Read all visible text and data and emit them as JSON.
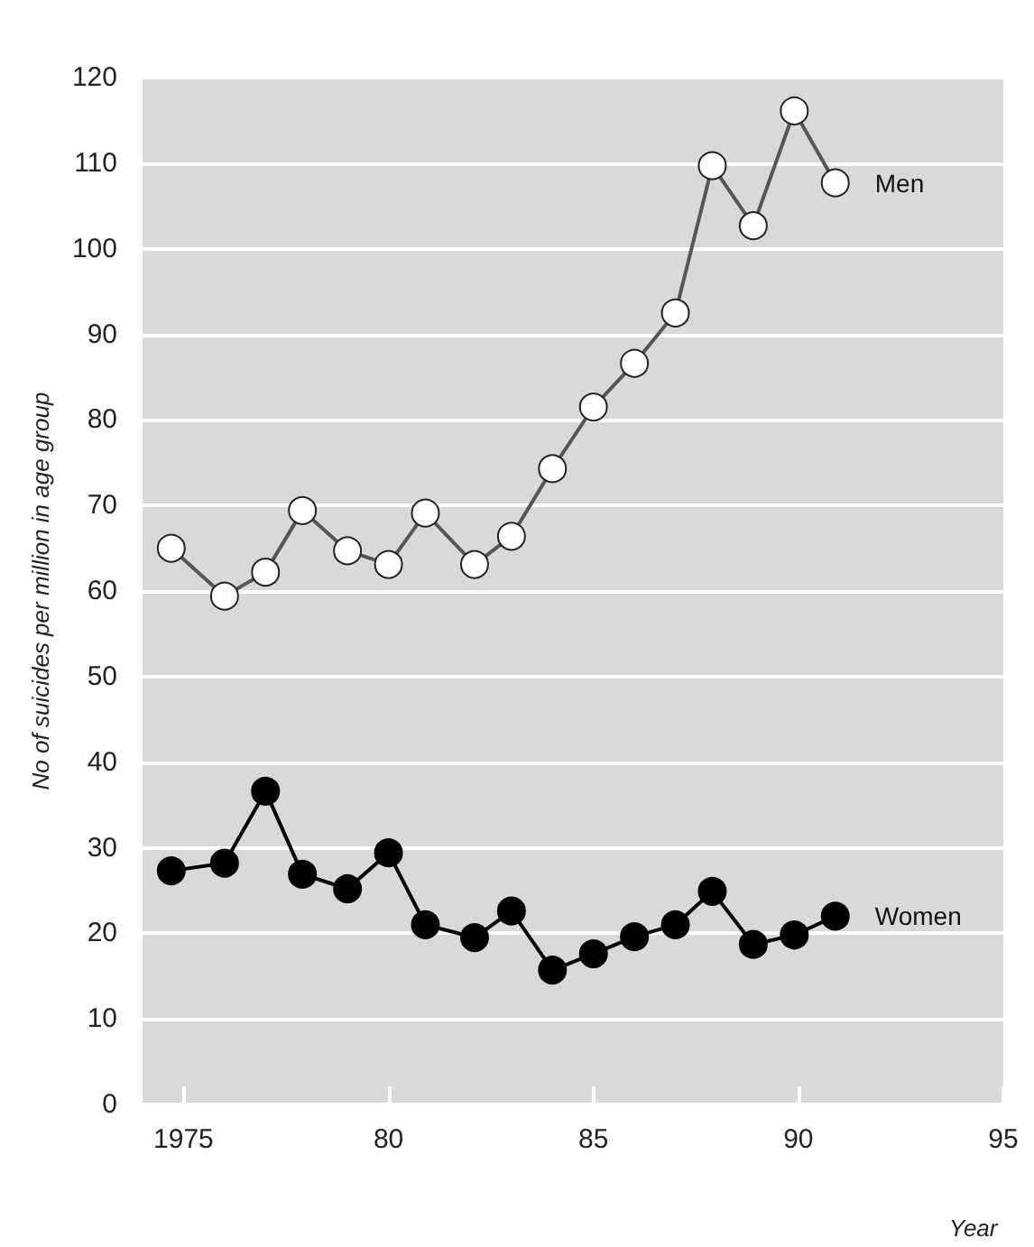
{
  "chart_data": {
    "type": "line",
    "xlabel": "Year",
    "ylabel": "No of suicides per million in age group",
    "x": [
      1974.7,
      1976,
      1977,
      1977.9,
      1979,
      1980,
      1980.9,
      1982.1,
      1983,
      1984,
      1985,
      1986,
      1987,
      1987.9,
      1988.9,
      1989.9,
      1990.9
    ],
    "series": [
      {
        "name": "Men",
        "color": "#555555",
        "values": [
          65,
          59.4,
          62.2,
          69.4,
          64.7,
          63.1,
          69.1,
          63.1,
          66.4,
          74.3,
          81.5,
          86.6,
          92.5,
          109.7,
          102.7,
          116.1,
          107.7
        ]
      },
      {
        "name": "Women",
        "color": "#000000",
        "values": [
          27.3,
          28.2,
          36.6,
          26.9,
          25.2,
          29.4,
          21,
          19.5,
          22.6,
          15.7,
          17.6,
          19.6,
          21,
          24.9,
          18.7,
          19.8,
          22
        ]
      }
    ],
    "xlim": [
      1974,
      1995
    ],
    "xticks": [
      1975,
      {
        "value": 1980,
        "label": "80"
      },
      {
        "value": 1985,
        "label": "85"
      },
      {
        "value": 1990,
        "label": "90"
      },
      {
        "value": 1995,
        "label": "95"
      }
    ],
    "ylim": [
      0,
      120
    ],
    "yticks": [
      0,
      10,
      20,
      30,
      40,
      50,
      60,
      70,
      80,
      90,
      100,
      110,
      120
    ],
    "grid": "y",
    "legend": false,
    "marker": "circle",
    "line_style": "solid"
  }
}
